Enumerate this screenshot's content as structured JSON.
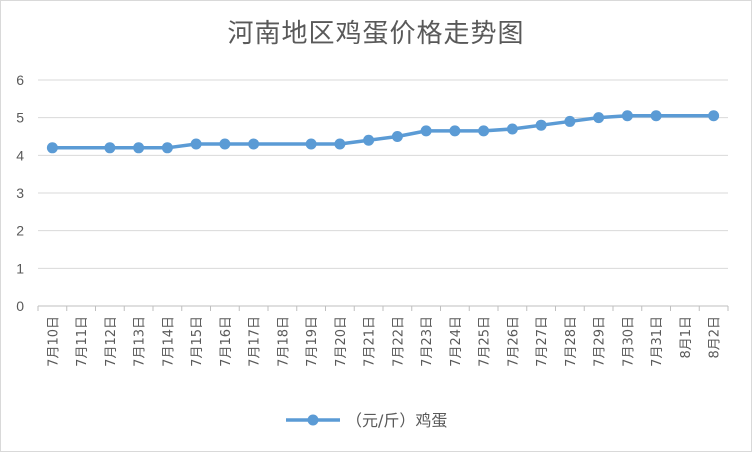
{
  "chart_data": {
    "type": "line",
    "title": "河南地区鸡蛋价格走势图",
    "xlabel": "",
    "ylabel": "",
    "ylim": [
      0,
      6
    ],
    "yticks": [
      0,
      1,
      2,
      3,
      4,
      5,
      6
    ],
    "grid": true,
    "legend_position": "bottom",
    "categories": [
      "7月10日",
      "7月11日",
      "7月12日",
      "7月13日",
      "7月14日",
      "7月15日",
      "7月16日",
      "7月17日",
      "7月18日",
      "7月19日",
      "7月20日",
      "7月21日",
      "7月22日",
      "7月23日",
      "7月24日",
      "7月25日",
      "7月26日",
      "7月27日",
      "7月28日",
      "7月29日",
      "7月30日",
      "7月31日",
      "8月1日",
      "8月2日"
    ],
    "series": [
      {
        "name": "（元/斤）鸡蛋",
        "color": "#5B9BD5",
        "values": [
          4.2,
          null,
          4.2,
          4.2,
          4.2,
          4.3,
          4.3,
          4.3,
          null,
          4.3,
          4.3,
          4.4,
          4.5,
          4.65,
          4.65,
          4.65,
          4.7,
          4.8,
          4.9,
          5.0,
          5.05,
          5.05,
          null,
          5.05
        ]
      }
    ]
  }
}
